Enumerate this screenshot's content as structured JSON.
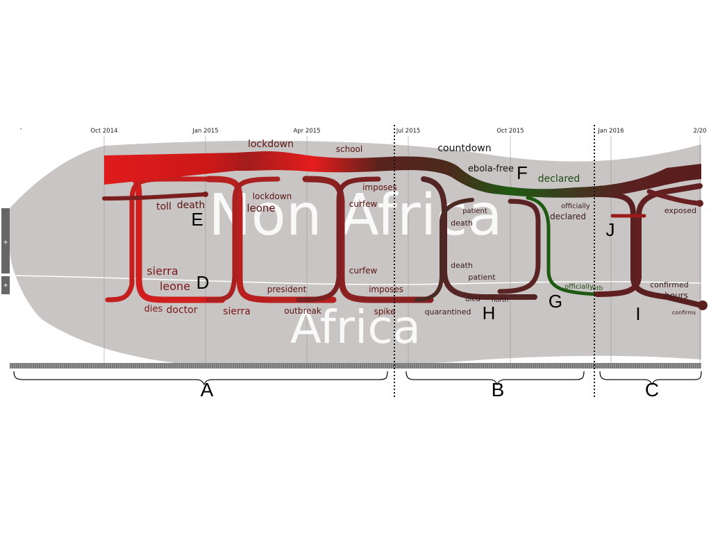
{
  "timeline": {
    "ticks": [
      {
        "label": "'"
      },
      {
        "label": "Oct 2014"
      },
      {
        "label": "Jan 2015"
      },
      {
        "label": "Apr 2015"
      },
      {
        "label": "Jul 2015"
      },
      {
        "label": "Oct 2015"
      },
      {
        "label": "Jan 2016"
      },
      {
        "label": "2/20"
      }
    ]
  },
  "regions": {
    "top": "Non Africa",
    "bottom": "Africa"
  },
  "keywords": {
    "lockdown": "lockdown",
    "school": "school",
    "countdown": "countdown",
    "ebola_free": "ebola-free",
    "declared_top": "declared",
    "toll": "toll",
    "death_e": "death",
    "lockdown_leone_1": "lockdown",
    "lockdown_leone_2": "leone",
    "imposes_top": "imposes",
    "curfew_top": "curfew",
    "patient_top": "patient",
    "death_top": "death",
    "officially_top": "officially",
    "declared_mid": "declared",
    "exposed": "exposed",
    "sierra_d": "sierra",
    "leone_d": "leone",
    "curfew_bottom": "curfew",
    "death_h": "death",
    "patient_h": "patient",
    "president": "president",
    "imposes_bottom": "imposes",
    "officially_bottom": "officially",
    "etb": "etb",
    "confirmed": "confirmed",
    "hours": "hours",
    "died": "died",
    "north": "north",
    "dies": "dies",
    "doctor": "doctor",
    "sierra_bottom": "sierra",
    "outbreak": "outbreak",
    "spike": "spike",
    "quarantined": "quarantined",
    "confirms": "confirms"
  },
  "letters": {
    "D": "D",
    "E": "E",
    "F": "F",
    "G": "G",
    "H": "H",
    "I": "I",
    "J": "J"
  },
  "periods": {
    "A": "A",
    "B": "B",
    "C": "C"
  },
  "controls": {
    "expand_top": "+",
    "expand_bottom": "+"
  },
  "colors": {
    "background_band": "#c8c5c4",
    "red": "#e01b1b",
    "dark_red": "#5a1d1d",
    "green": "#1f5a12",
    "text_dark_red": "#5a1212",
    "text_green": "#1e4d12"
  }
}
